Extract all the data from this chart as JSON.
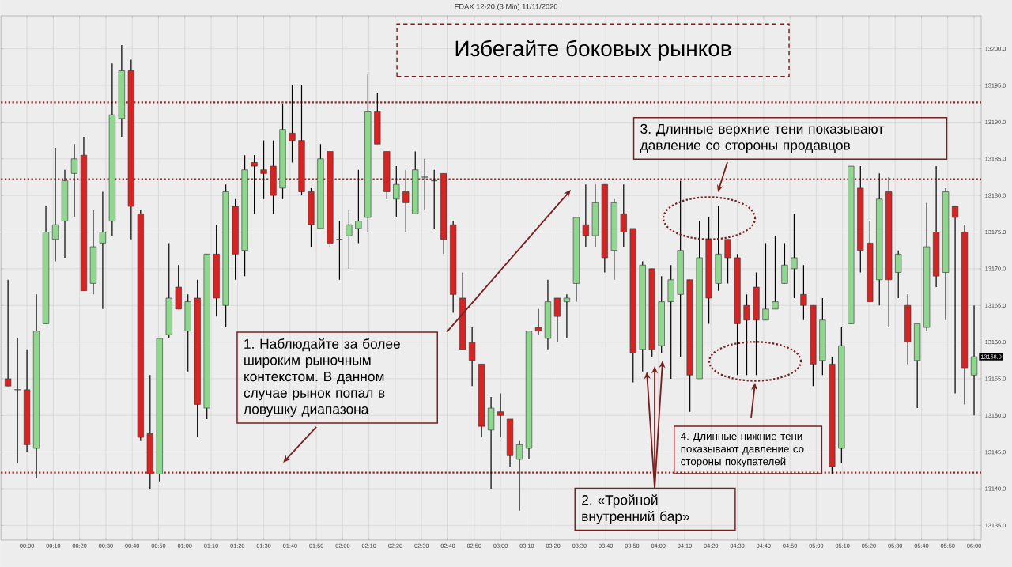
{
  "chart_data": {
    "type": "candlestick",
    "title": "FDAX 12-20 (3 Min)  11/11/2020",
    "subtitle": "Избегайте боковых рынков",
    "x": [
      -0.12,
      -0.06,
      0,
      0.06,
      0.12,
      0.18,
      0.24,
      0.3,
      0.36,
      0.42,
      0.48,
      0.54,
      0.6,
      0.66,
      0.72,
      0.78,
      0.84,
      0.9,
      0.96,
      1.02,
      1.08,
      1.14,
      1.2,
      1.26,
      1.32,
      1.38,
      1.44,
      1.5,
      1.56,
      1.62,
      1.68,
      1.74,
      1.8,
      1.86,
      1.92,
      1.98,
      2.04,
      2.1,
      2.16,
      2.22,
      2.28,
      2.34,
      2.4,
      2.46,
      2.52,
      2.58,
      2.64,
      2.7,
      2.76,
      2.82,
      2.88,
      2.94,
      3.0,
      3.06,
      3.12,
      3.18,
      3.24,
      3.3,
      3.36,
      3.42,
      3.48,
      3.54,
      3.6,
      3.66,
      3.72,
      3.78,
      3.84,
      3.9,
      3.96,
      4.02,
      4.08,
      4.14,
      4.2,
      4.26,
      4.32,
      4.38,
      4.44,
      4.5,
      4.56,
      4.62,
      4.68,
      4.74,
      4.8,
      4.86,
      4.92,
      4.98,
      5.04,
      5.1,
      5.16,
      5.22,
      5.28,
      5.34,
      5.4,
      5.46,
      5.52,
      5.58,
      5.64,
      5.7,
      5.76,
      5.82,
      5.88,
      5.94,
      6.0
    ],
    "ohlc": [
      [
        13155,
        13168.5,
        13154,
        13154
      ],
      [
        13153.5,
        13160.5,
        13143.5,
        13153.5
      ],
      [
        13153.5,
        13159,
        13145,
        13146
      ],
      [
        13145.5,
        13166.5,
        13141.5,
        13161.5
      ],
      [
        13162.5,
        13178.5,
        13162.5,
        13175
      ],
      [
        13174,
        13186.5,
        13171,
        13176
      ],
      [
        13176.5,
        13183.5,
        13171.5,
        13182
      ],
      [
        13183,
        13187,
        13177,
        13185
      ],
      [
        13185.5,
        13188,
        13167,
        13167
      ],
      [
        13168,
        13178,
        13166.5,
        13173
      ],
      [
        13173.5,
        13180.5,
        13164.5,
        13175
      ],
      [
        13176.5,
        13198,
        13174.5,
        13191
      ],
      [
        13190.5,
        13200.5,
        13188,
        13197
      ],
      [
        13197,
        13198.5,
        13174,
        13178.5
      ],
      [
        13177.5,
        13178,
        13146.5,
        13147
      ],
      [
        13147.5,
        13155.5,
        13140,
        13142
      ],
      [
        13142,
        13160.5,
        13141,
        13160.5
      ],
      [
        13161,
        13173.5,
        13160.5,
        13166
      ],
      [
        13167.5,
        13170.5,
        13164.5,
        13164.5
      ],
      [
        13161.5,
        13166.5,
        13156,
        13165.5
      ],
      [
        13166,
        13168.5,
        13147,
        13151.5
      ],
      [
        13151,
        13172,
        13149.5,
        13172
      ],
      [
        13172,
        13176,
        13163.5,
        13166
      ],
      [
        13165,
        13181.5,
        13162,
        13180.5
      ],
      [
        13178.5,
        13179.5,
        13168.5,
        13172
      ],
      [
        13172.5,
        13185.5,
        13169,
        13183.5
      ],
      [
        13184.5,
        13185.5,
        13177.5,
        13184
      ],
      [
        13183.5,
        13187.5,
        13179.5,
        13183
      ],
      [
        13184,
        13187.5,
        13177.5,
        13180
      ],
      [
        13181,
        13192.5,
        13179.5,
        13189
      ],
      [
        13188.5,
        13195,
        13184.5,
        13187.5
      ],
      [
        13187.5,
        13195,
        13180,
        13180.5
      ],
      [
        13180.5,
        13181,
        13173,
        13176
      ],
      [
        13175.5,
        13187,
        13175.5,
        13185
      ],
      [
        13186,
        13186,
        13173,
        13173.5
      ],
      [
        13174,
        13176.5,
        13168.5,
        13174
      ],
      [
        13174.5,
        13178,
        13170,
        13176
      ],
      [
        13175.5,
        13183.5,
        13173.5,
        13176.5
      ],
      [
        13177,
        13196.5,
        13175,
        13191.5
      ],
      [
        13191.5,
        13194,
        13187,
        13187
      ],
      [
        13186,
        13186,
        13179.5,
        13180.5
      ],
      [
        13179.5,
        13184,
        13177,
        13181.5
      ],
      [
        13180.5,
        13183.5,
        13175,
        13179
      ],
      [
        13177.5,
        13186,
        13177.5,
        13183.5
      ],
      [
        13182.5,
        13185,
        13178,
        13182.5
      ],
      [
        13182,
        13183.5,
        13175.5,
        13182
      ],
      [
        13183,
        13183,
        13172,
        13174
      ],
      [
        13176,
        13176.5,
        13164,
        13166.5
      ],
      [
        13166,
        13169.5,
        13159,
        13159
      ],
      [
        13160,
        13162,
        13154,
        13157.5
      ],
      [
        13157,
        13157,
        13147,
        13148.5
      ],
      [
        13148,
        13152.5,
        13140,
        13151
      ],
      [
        13150.5,
        13153,
        13147,
        13150
      ],
      [
        13149.5,
        13149.5,
        13143,
        13144.5
      ],
      [
        13144,
        13146.5,
        13137,
        13146
      ],
      [
        13145.5,
        13161.5,
        13144,
        13161.5
      ],
      [
        13162,
        13164.5,
        13161,
        13161.5
      ],
      [
        13160.5,
        13168.5,
        13159,
        13165.5
      ],
      [
        13166,
        13166,
        13160,
        13163.5
      ],
      [
        13165.5,
        13166.5,
        13160.5,
        13166
      ],
      [
        13168,
        13177,
        13165.5,
        13177
      ],
      [
        13176,
        13181.5,
        13173,
        13174.5
      ],
      [
        13174.5,
        13181.5,
        13173,
        13179
      ],
      [
        13181.5,
        13181.5,
        13169.5,
        13171.5
      ],
      [
        13172.5,
        13179.5,
        13168.5,
        13179
      ],
      [
        13177.5,
        13181.5,
        13173,
        13175
      ],
      [
        13175.5,
        13175.5,
        13154.5,
        13158.5
      ],
      [
        13159,
        13171,
        13156,
        13170.5
      ],
      [
        13170,
        13170,
        13158,
        13159
      ],
      [
        13159.5,
        13169,
        13158.5,
        13165.5
      ],
      [
        13165.5,
        13170.5,
        13155,
        13168.5
      ],
      [
        13166.5,
        13182,
        13158,
        13172.5
      ],
      [
        13168.5,
        13168.5,
        13150.5,
        13155.5
      ],
      [
        13155,
        13176.5,
        13155,
        13171.5
      ],
      [
        13174,
        13177,
        13162.5,
        13166
      ],
      [
        13168,
        13178.5,
        13167,
        13172
      ],
      [
        13174,
        13174,
        13168,
        13171.5
      ],
      [
        13171.5,
        13172,
        13155.5,
        13162.5
      ],
      [
        13165,
        13166.5,
        13155.5,
        13163
      ],
      [
        13167.5,
        13169.5,
        13155.5,
        13163
      ],
      [
        13163,
        13173.5,
        13163,
        13164.5
      ],
      [
        13164.5,
        13174.5,
        13164.5,
        13165.5
      ],
      [
        13168,
        13173.5,
        13168,
        13170.5
      ],
      [
        13170,
        13177.5,
        13166,
        13171.5
      ],
      [
        13166.5,
        13170.5,
        13163,
        13165
      ],
      [
        13165,
        13165,
        13154,
        13157
      ],
      [
        13157.5,
        13166,
        13155.5,
        13163
      ],
      [
        13157,
        13158,
        13142,
        13143
      ],
      [
        13145.5,
        13162,
        13143.5,
        13159.5
      ],
      [
        13162.5,
        13184,
        13162.5,
        13184
      ],
      [
        13181,
        13184,
        13169.5,
        13172.5
      ],
      [
        13173.5,
        13176.5,
        13165.5,
        13165.5
      ],
      [
        13168.5,
        13183,
        13165,
        13179.5
      ],
      [
        13180.5,
        13182.5,
        13162,
        13168.5
      ],
      [
        13169.5,
        13172.5,
        13166,
        13172
      ],
      [
        13165,
        13166.5,
        13157,
        13160
      ],
      [
        13157.5,
        13162.5,
        13151,
        13162.5
      ],
      [
        13162,
        13179,
        13161.5,
        13173
      ],
      [
        13175,
        13184,
        13167.5,
        13169
      ],
      [
        13169.5,
        13181,
        13163,
        13180.5
      ],
      [
        13178.5,
        13178.5,
        13153,
        13177
      ],
      [
        13175,
        13176,
        13151.5,
        13156.5
      ],
      [
        13155.5,
        13165,
        13150,
        13158
      ]
    ],
    "colors": [
      "#d42424",
      "#333333",
      "#d42424",
      "#8fd68f",
      "#8fd68f",
      "#8fd68f",
      "#8fd68f",
      "#8fd68f",
      "#d42424",
      "#8fd68f",
      "#8fd68f",
      "#8fd68f",
      "#8fd68f",
      "#d42424",
      "#d42424",
      "#d42424",
      "#8fd68f",
      "#8fd68f",
      "#d42424",
      "#8fd68f",
      "#d42424",
      "#8fd68f",
      "#d42424",
      "#8fd68f",
      "#d42424",
      "#8fd68f",
      "#d42424",
      "#d42424",
      "#d42424",
      "#8fd68f",
      "#d42424",
      "#d42424",
      "#d42424",
      "#8fd68f",
      "#d42424",
      "#333333",
      "#8fd68f",
      "#8fd68f",
      "#8fd68f",
      "#d42424",
      "#d42424",
      "#8fd68f",
      "#d42424",
      "#8fd68f",
      "#333333",
      "#333333",
      "#d42424",
      "#d42424",
      "#d42424",
      "#d42424",
      "#d42424",
      "#8fd68f",
      "#d42424",
      "#d42424",
      "#8fd68f",
      "#8fd68f",
      "#d42424",
      "#8fd68f",
      "#d42424",
      "#8fd68f",
      "#8fd68f",
      "#d42424",
      "#8fd68f",
      "#d42424",
      "#8fd68f",
      "#d42424",
      "#d42424",
      "#8fd68f",
      "#d42424",
      "#8fd68f",
      "#8fd68f",
      "#8fd68f",
      "#d42424",
      "#8fd68f",
      "#d42424",
      "#8fd68f",
      "#d42424",
      "#d42424",
      "#d42424",
      "#d42424",
      "#8fd68f",
      "#8fd68f",
      "#8fd68f",
      "#8fd68f",
      "#d42424",
      "#d42424",
      "#8fd68f",
      "#d42424",
      "#8fd68f",
      "#8fd68f",
      "#d42424",
      "#d42424",
      "#8fd68f",
      "#d42424",
      "#8fd68f",
      "#d42424",
      "#8fd68f",
      "#8fd68f",
      "#d42424",
      "#8fd68f",
      "#d42424",
      "#d42424",
      "#8fd68f"
    ],
    "xlim": [
      -0.165,
      6.045
    ],
    "ylim": [
      13133,
      13204.5
    ],
    "xticks": [
      {
        "value": 0,
        "label": "00:00"
      },
      {
        "value": 0.1667,
        "label": "00:10"
      },
      {
        "value": 0.3333,
        "label": "00:20"
      },
      {
        "value": 0.5,
        "label": "00:30"
      },
      {
        "value": 0.6667,
        "label": "00:40"
      },
      {
        "value": 0.8333,
        "label": "00:50"
      },
      {
        "value": 1,
        "label": "01:00"
      },
      {
        "value": 1.1667,
        "label": "01:10"
      },
      {
        "value": 1.3333,
        "label": "01:20"
      },
      {
        "value": 1.5,
        "label": "01:30"
      },
      {
        "value": 1.6667,
        "label": "01:40"
      },
      {
        "value": 1.8333,
        "label": "01:50"
      },
      {
        "value": 2,
        "label": "02:00"
      },
      {
        "value": 2.1667,
        "label": "02:10"
      },
      {
        "value": 2.3333,
        "label": "02:20"
      },
      {
        "value": 2.5,
        "label": "02:30"
      },
      {
        "value": 2.6667,
        "label": "02:40"
      },
      {
        "value": 2.8333,
        "label": "02:50"
      },
      {
        "value": 3,
        "label": "03:00"
      },
      {
        "value": 3.1667,
        "label": "03:10"
      },
      {
        "value": 3.3333,
        "label": "03:20"
      },
      {
        "value": 3.5,
        "label": "03:30"
      },
      {
        "value": 3.6667,
        "label": "03:40"
      },
      {
        "value": 3.8333,
        "label": "03:50"
      },
      {
        "value": 4,
        "label": "04:00"
      },
      {
        "value": 4.1667,
        "label": "04:10"
      },
      {
        "value": 4.3333,
        "label": "04:20"
      },
      {
        "value": 4.5,
        "label": "04:30"
      },
      {
        "value": 4.6667,
        "label": "04:40"
      },
      {
        "value": 4.8333,
        "label": "04:50"
      },
      {
        "value": 5,
        "label": "05:00"
      },
      {
        "value": 5.1667,
        "label": "05:10"
      },
      {
        "value": 5.3333,
        "label": "05:20"
      },
      {
        "value": 5.5,
        "label": "05:30"
      },
      {
        "value": 5.6667,
        "label": "05:40"
      },
      {
        "value": 5.8333,
        "label": "05:50"
      },
      {
        "value": 6,
        "label": "06:00"
      }
    ],
    "yticks": [
      {
        "value": 13135,
        "label": "13135.0"
      },
      {
        "value": 13140,
        "label": "13140.0"
      },
      {
        "value": 13145,
        "label": "13145.0"
      },
      {
        "value": 13150,
        "label": "13150.0"
      },
      {
        "value": 13155,
        "label": "13155.0"
      },
      {
        "value": 13160,
        "label": "13160.0"
      },
      {
        "value": 13165,
        "label": "13165.0"
      },
      {
        "value": 13170,
        "label": "13170.0"
      },
      {
        "value": 13175,
        "label": "13175.0"
      },
      {
        "value": 13180,
        "label": "13180.0"
      },
      {
        "value": 13185,
        "label": "13185.0"
      },
      {
        "value": 13190,
        "label": "13190.0"
      },
      {
        "value": 13195,
        "label": "13195.0"
      },
      {
        "value": 13200,
        "label": "13200.0"
      }
    ],
    "grid": true,
    "ref_lines": [
      {
        "axis": "y",
        "value": 13192.7,
        "color": "#8b2c2c",
        "line_style": "dotted"
      },
      {
        "axis": "y",
        "value": 13182.2,
        "color": "#8b2c2c",
        "line_style": "dotted"
      },
      {
        "axis": "y",
        "value": 13142.2,
        "color": "#8b2c2c",
        "line_style": "dotted"
      }
    ],
    "annotations": [
      "1. Наблюдайте за более широким рыночным контекстом. В данном случае рынок попал в ловушку диапазона",
      "2. «Тройной внутренний бар»",
      "3. Длинные верхние тени показывают давление со стороны продавцов",
      "4. Длинные нижние тени показывают давление со стороны покупателей",
      {
        "text": "13158.0",
        "x": 6.0,
        "y": 13158
      }
    ]
  }
}
